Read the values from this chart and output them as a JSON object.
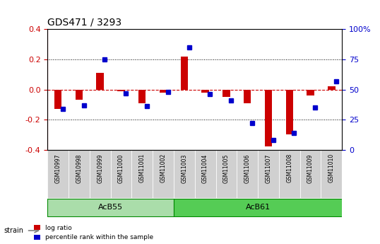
{
  "title": "GDS471 / 3293",
  "samples": [
    "GSM10997",
    "GSM10998",
    "GSM10999",
    "GSM11000",
    "GSM11001",
    "GSM11002",
    "GSM11003",
    "GSM11004",
    "GSM11005",
    "GSM11006",
    "GSM11007",
    "GSM11008",
    "GSM11009",
    "GSM11010"
  ],
  "log_ratio": [
    -0.13,
    -0.07,
    0.11,
    -0.01,
    -0.09,
    -0.02,
    0.22,
    -0.02,
    -0.05,
    -0.09,
    -0.38,
    -0.3,
    -0.04,
    0.02
  ],
  "percentile_rank": [
    34,
    37,
    75,
    47,
    36,
    48,
    85,
    46,
    41,
    22,
    8,
    14,
    35,
    57
  ],
  "bar_color": "#cc0000",
  "dot_color": "#0000cc",
  "zero_line_color": "#cc0000",
  "dotted_line_color": "#000000",
  "background_color": "#ffffff",
  "plot_bg": "#ffffff",
  "ylim_left": [
    -0.4,
    0.4
  ],
  "ylim_right": [
    0,
    100
  ],
  "yticks_left": [
    -0.4,
    -0.2,
    0.0,
    0.2,
    0.4
  ],
  "yticks_right": [
    0,
    25,
    50,
    75,
    100
  ],
  "ytick_labels_right": [
    "0",
    "25",
    "50",
    "75",
    "100%"
  ],
  "groups": [
    {
      "label": "AcB55",
      "start": 0,
      "end": 5,
      "color": "#aaddaa"
    },
    {
      "label": "AcB61",
      "start": 6,
      "end": 13,
      "color": "#55cc55"
    }
  ],
  "strain_label": "strain",
  "legend_items": [
    {
      "color": "#cc0000",
      "label": "log ratio"
    },
    {
      "color": "#0000cc",
      "label": "percentile rank within the sample"
    }
  ],
  "bar_width": 0.35,
  "dot_size": 40
}
